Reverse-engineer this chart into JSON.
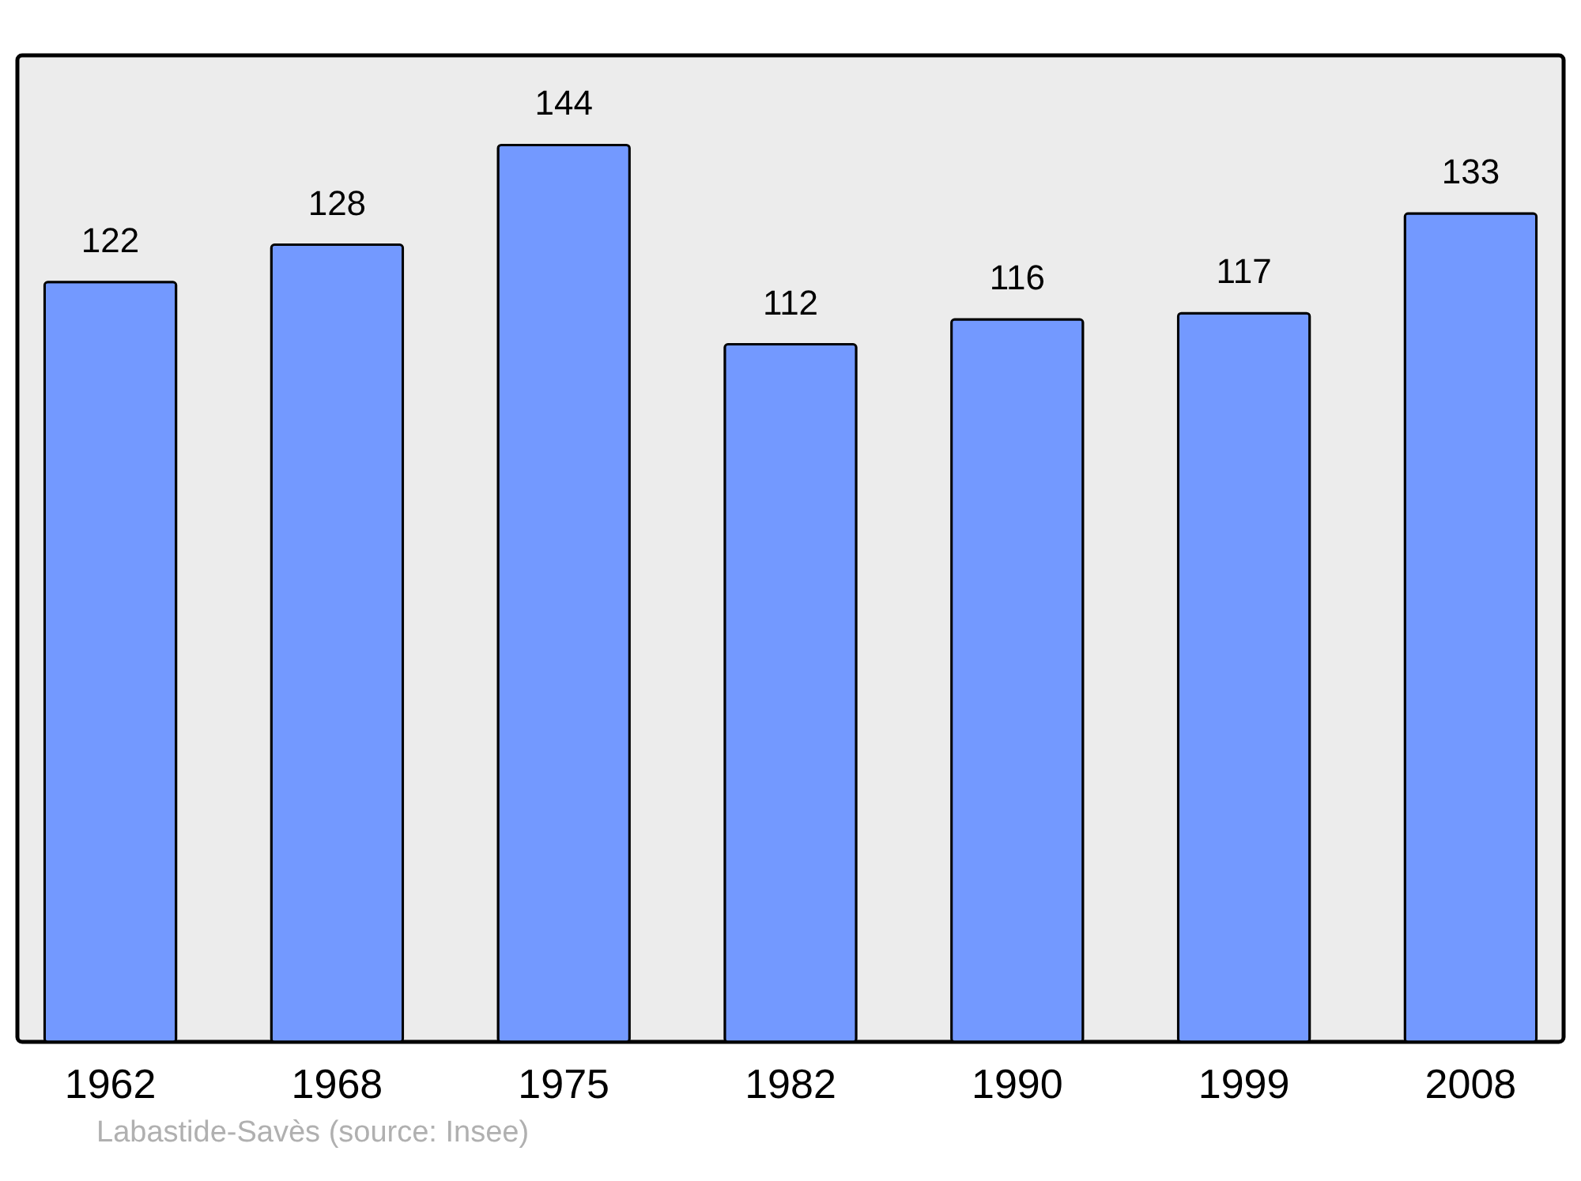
{
  "chart_data": {
    "type": "bar",
    "categories": [
      "1962",
      "1968",
      "1975",
      "1982",
      "1990",
      "1999",
      "2008"
    ],
    "values": [
      122,
      128,
      144,
      112,
      116,
      117,
      133
    ],
    "color": "#7399ff",
    "data_labels": true,
    "grid": false,
    "annotations": [
      "Labastide-Savès    (source: Insee)"
    ]
  }
}
